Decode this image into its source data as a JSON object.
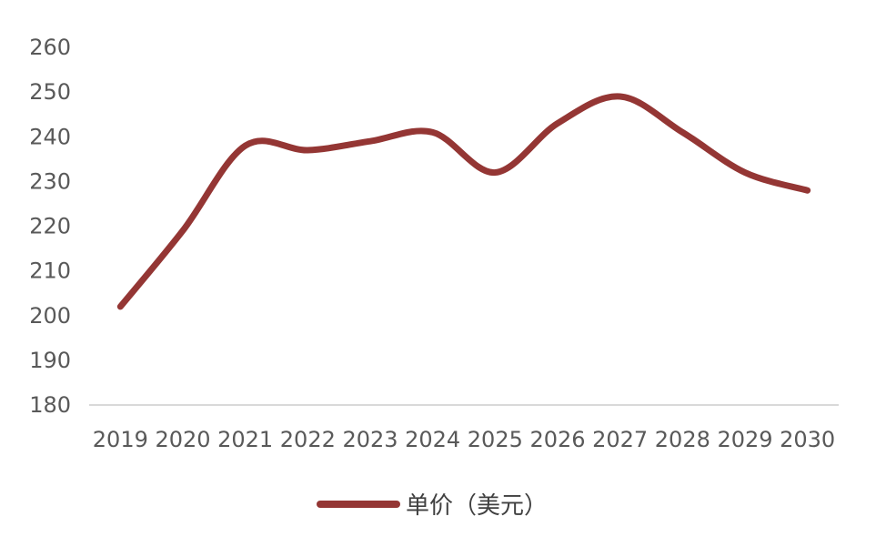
{
  "chart_data": {
    "type": "line",
    "x": [
      "2019",
      "2020",
      "2021",
      "2022",
      "2023",
      "2024",
      "2025",
      "2026",
      "2027",
      "2028",
      "2029",
      "2030"
    ],
    "series": [
      {
        "name": "单价（美元）",
        "values": [
          202,
          219,
          238,
          237,
          239,
          241,
          232,
          243,
          249,
          241,
          232,
          228
        ],
        "color": "#943634"
      }
    ],
    "title": "",
    "xlabel": "",
    "ylabel": "",
    "ylim": [
      180,
      260
    ],
    "yticks": [
      "180",
      "190",
      "200",
      "210",
      "220",
      "230",
      "240",
      "250",
      "260"
    ],
    "grid": false,
    "legend": "bottom",
    "smooth": true
  }
}
